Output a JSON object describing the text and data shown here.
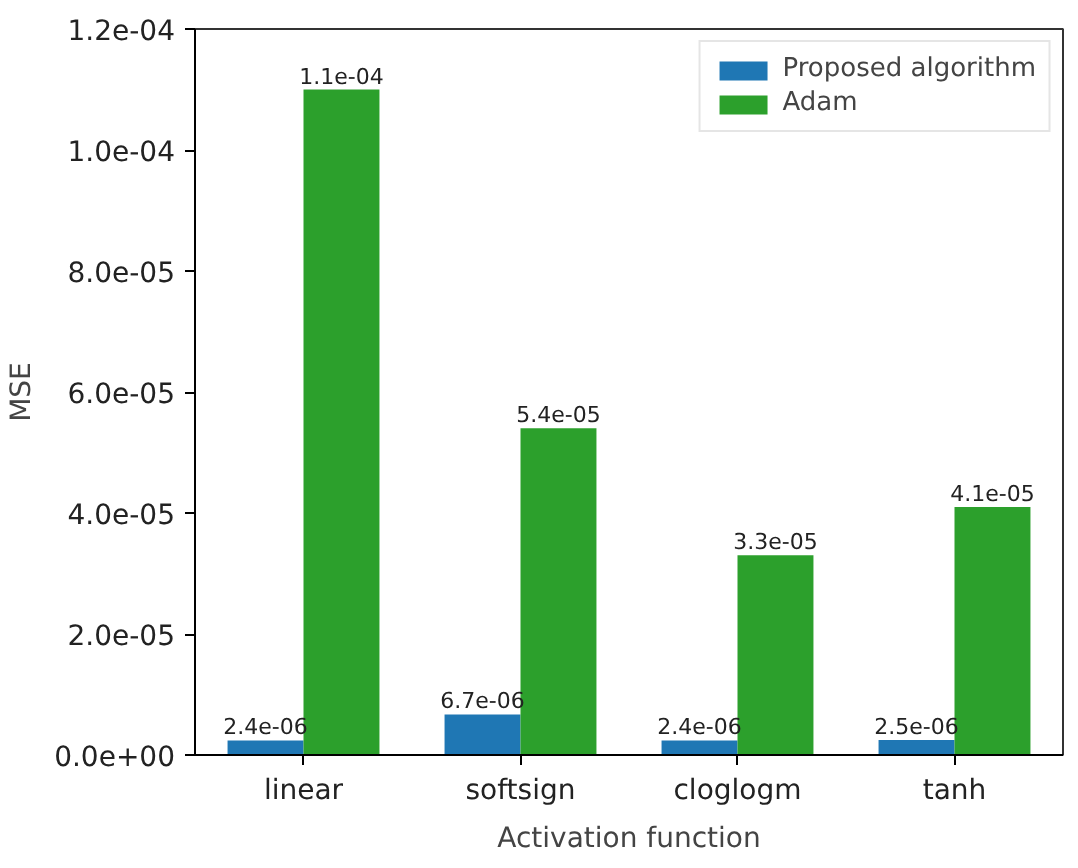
{
  "chart_data": {
    "type": "bar",
    "xlabel": "Activation function",
    "ylabel": "MSE",
    "categories": [
      "linear",
      "softsign",
      "cloglogm",
      "tanh"
    ],
    "series": [
      {
        "name": "Proposed algorithm",
        "color": "#1f77b4",
        "values": [
          2.4e-06,
          6.7e-06,
          2.4e-06,
          2.5e-06
        ],
        "value_labels": [
          "2.4e-06",
          "6.7e-06",
          "2.4e-06",
          "2.5e-06"
        ]
      },
      {
        "name": "Adam",
        "color": "#2ca02c",
        "values": [
          0.00011,
          5.4e-05,
          3.3e-05,
          4.1e-05
        ],
        "value_labels": [
          "1.1e-04",
          "5.4e-05",
          "3.3e-05",
          "4.1e-05"
        ]
      }
    ],
    "ylim": [
      0,
      0.00012
    ],
    "yticks": [
      {
        "value": 0,
        "label": "0.0e+00"
      },
      {
        "value": 2e-05,
        "label": "2.0e-05"
      },
      {
        "value": 4e-05,
        "label": "4.0e-05"
      },
      {
        "value": 6e-05,
        "label": "6.0e-05"
      },
      {
        "value": 8e-05,
        "label": "8.0e-05"
      },
      {
        "value": 0.0001,
        "label": "1.0e-04"
      },
      {
        "value": 0.00012,
        "label": "1.2e-04"
      }
    ],
    "legend": "top right",
    "grid": false
  }
}
